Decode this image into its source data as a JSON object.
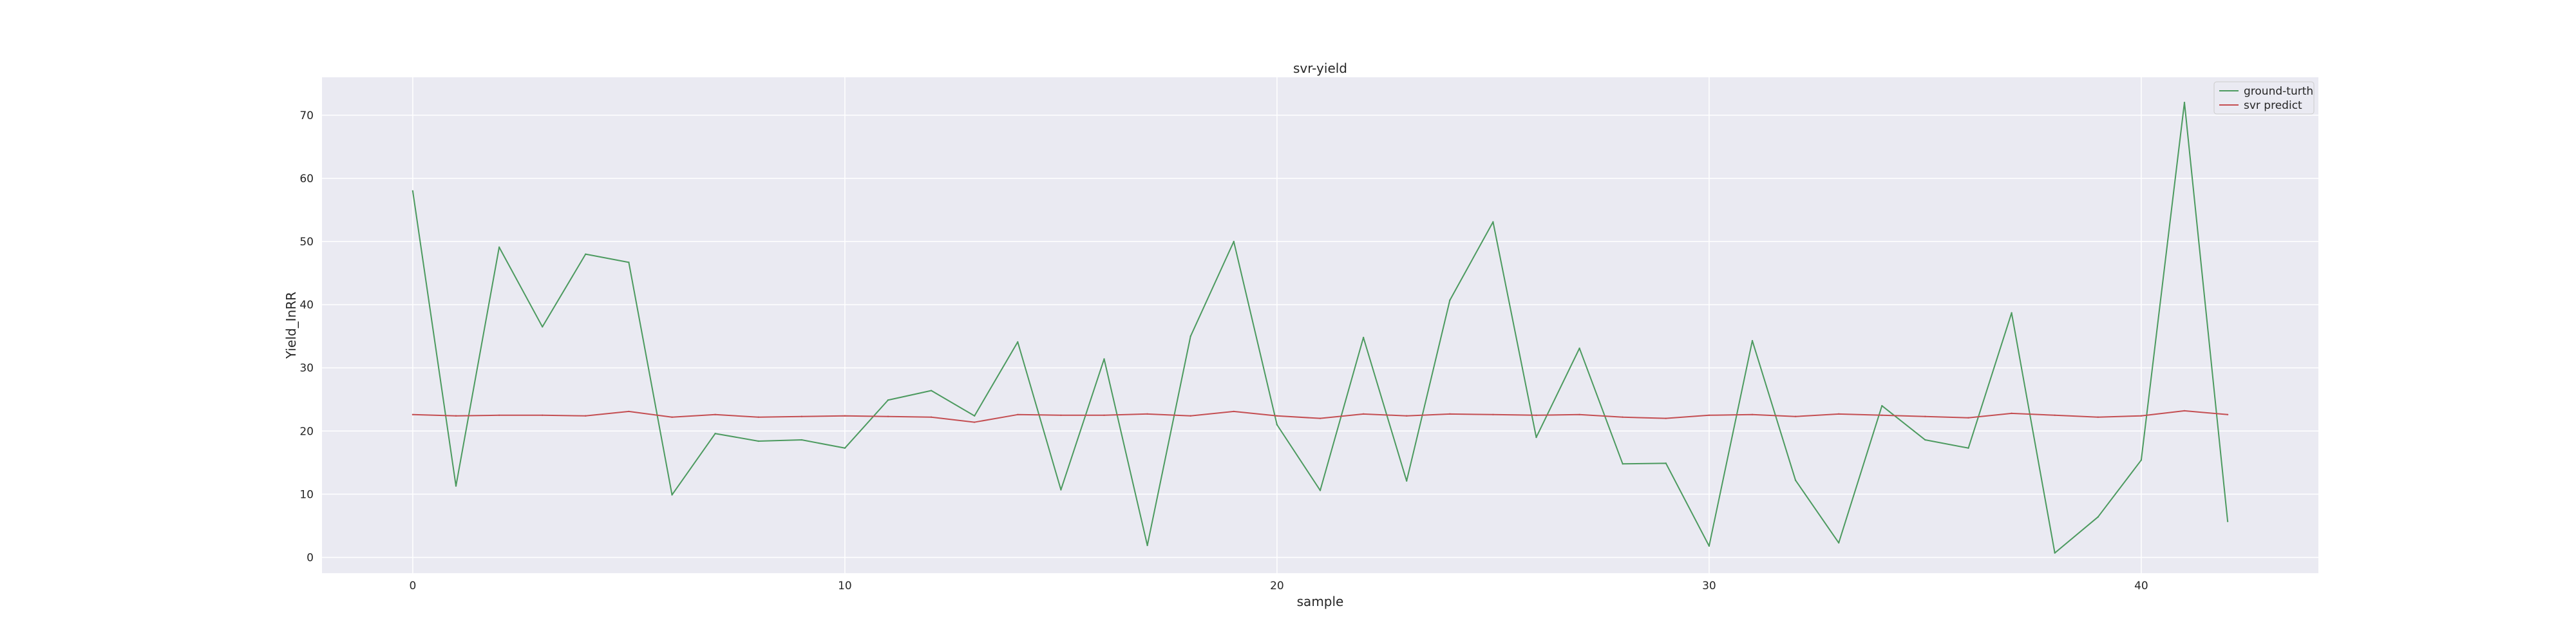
{
  "chart_data": {
    "type": "line",
    "title": "svr-yield",
    "xlabel": "sample",
    "ylabel": "Yield_InRR",
    "xlim": [
      -2.1,
      44.1
    ],
    "ylim": [
      -2.5,
      76
    ],
    "xticks": [
      0,
      10,
      20,
      30,
      40
    ],
    "yticks": [
      0,
      10,
      20,
      30,
      40,
      50,
      60,
      70
    ],
    "grid": true,
    "legend_position": "top-right",
    "x": [
      0,
      1,
      2,
      3,
      4,
      5,
      6,
      7,
      8,
      9,
      10,
      11,
      12,
      13,
      14,
      15,
      16,
      17,
      18,
      19,
      20,
      21,
      22,
      23,
      24,
      25,
      26,
      27,
      28,
      29,
      30,
      31,
      32,
      33,
      34,
      35,
      36,
      37,
      38,
      39,
      40,
      41,
      42
    ],
    "series": [
      {
        "name": "ground-turth",
        "color": "#4c9a5f",
        "values": [
          58.0,
          11.3,
          49.1,
          36.5,
          48.0,
          46.7,
          9.9,
          19.6,
          18.4,
          18.6,
          17.3,
          24.9,
          26.4,
          22.4,
          34.1,
          10.7,
          31.4,
          1.9,
          35.0,
          50.0,
          21.0,
          10.6,
          34.8,
          12.1,
          40.7,
          53.1,
          19.0,
          33.1,
          14.8,
          14.9,
          1.8,
          34.3,
          12.2,
          2.3,
          24.0,
          18.6,
          17.3,
          38.7,
          0.7,
          6.4,
          15.4,
          72.0,
          5.7
        ]
      },
      {
        "name": "svr predict",
        "color": "#c44e52",
        "values": [
          22.6,
          22.4,
          22.5,
          22.5,
          22.4,
          23.1,
          22.2,
          22.6,
          22.2,
          22.3,
          22.4,
          22.3,
          22.2,
          21.4,
          22.6,
          22.5,
          22.5,
          22.7,
          22.4,
          23.1,
          22.4,
          22.0,
          22.7,
          22.4,
          22.7,
          22.6,
          22.5,
          22.6,
          22.2,
          22.0,
          22.5,
          22.6,
          22.3,
          22.7,
          22.5,
          22.3,
          22.1,
          22.8,
          22.5,
          22.2,
          22.4,
          23.2,
          22.6
        ]
      }
    ]
  }
}
